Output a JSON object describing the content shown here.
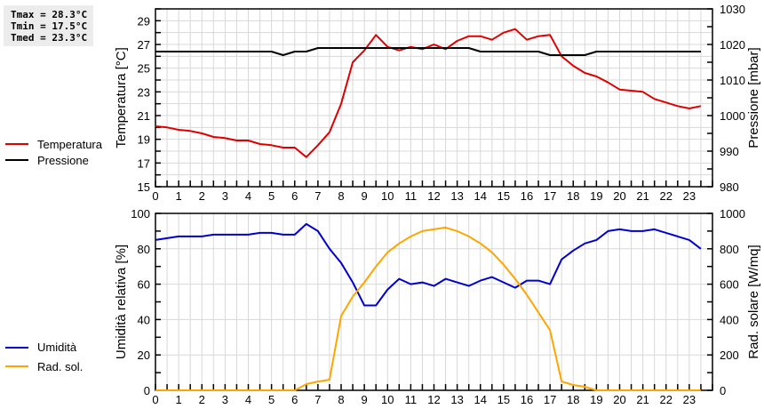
{
  "stats": {
    "tmax": "Tmax = 28.3°C",
    "tmin": "Tmin = 17.5°C",
    "tmed": "Tmed = 23.3°C"
  },
  "legend_top": [
    {
      "label": "Temperatura",
      "color": "#e00000"
    },
    {
      "label": "Pressione",
      "color": "#000000"
    }
  ],
  "legend_bottom": [
    {
      "label": "Umidità",
      "color": "#0000d0"
    },
    {
      "label": "Rad. sol.",
      "color": "#ffa500"
    }
  ],
  "chart_data": [
    {
      "type": "line",
      "title": "",
      "xlabel": "",
      "x_ticks": [
        0,
        1,
        2,
        3,
        4,
        5,
        6,
        7,
        8,
        9,
        10,
        11,
        12,
        13,
        14,
        15,
        16,
        17,
        18,
        19,
        20,
        21,
        22,
        23
      ],
      "x": [
        0,
        0.5,
        1,
        1.5,
        2,
        2.5,
        3,
        3.5,
        4,
        4.5,
        5,
        5.5,
        6,
        6.5,
        7,
        7.5,
        8,
        8.5,
        9,
        9.5,
        10,
        10.5,
        11,
        11.5,
        12,
        12.5,
        13,
        13.5,
        14,
        14.5,
        15,
        15.5,
        16,
        16.5,
        17,
        17.5,
        18,
        18.5,
        19,
        19.5,
        20,
        20.5,
        21,
        21.5,
        22,
        22.5,
        23,
        23.5
      ],
      "xlim": [
        0,
        24
      ],
      "grid": true,
      "ylabel": "Temperatura [°C]",
      "ylim": [
        15,
        30
      ],
      "y_ticks": [
        15,
        17,
        19,
        21,
        23,
        25,
        27,
        29
      ],
      "y2label": "Pressione [mbar]",
      "y2lim": [
        980,
        1030
      ],
      "y2_ticks": [
        980,
        990,
        1000,
        1010,
        1020,
        1030
      ],
      "legend_position": "left",
      "series": [
        {
          "name": "Temperatura",
          "axis": "y",
          "color": "#e00000",
          "values": [
            20.1,
            20.0,
            19.8,
            19.7,
            19.5,
            19.2,
            19.1,
            18.9,
            18.9,
            18.6,
            18.5,
            18.3,
            18.3,
            17.5,
            18.5,
            19.6,
            22.0,
            25.5,
            26.5,
            27.8,
            26.8,
            26.5,
            26.8,
            26.6,
            27.0,
            26.6,
            27.3,
            27.7,
            27.7,
            27.4,
            28.0,
            28.3,
            27.4,
            27.7,
            27.8,
            26.0,
            25.2,
            24.6,
            24.3,
            23.8,
            23.2,
            23.1,
            23.0,
            22.4,
            22.1,
            21.8,
            21.6,
            21.8
          ]
        },
        {
          "name": "Pressione",
          "axis": "y2",
          "color": "#000000",
          "values": [
            1018,
            1018,
            1018,
            1018,
            1018,
            1018,
            1018,
            1018,
            1018,
            1018,
            1018,
            1017,
            1018,
            1018,
            1019,
            1019,
            1019,
            1019,
            1019,
            1019,
            1019,
            1019,
            1019,
            1019,
            1019,
            1019,
            1019,
            1019,
            1018,
            1018,
            1018,
            1018,
            1018,
            1018,
            1017,
            1017,
            1017,
            1017,
            1018,
            1018,
            1018,
            1018,
            1018,
            1018,
            1018,
            1018,
            1018,
            1018
          ]
        }
      ]
    },
    {
      "type": "line",
      "title": "",
      "xlabel": "",
      "x_ticks": [
        0,
        1,
        2,
        3,
        4,
        5,
        6,
        7,
        8,
        9,
        10,
        11,
        12,
        13,
        14,
        15,
        16,
        17,
        18,
        19,
        20,
        21,
        22,
        23
      ],
      "x": [
        0,
        0.5,
        1,
        1.5,
        2,
        2.5,
        3,
        3.5,
        4,
        4.5,
        5,
        5.5,
        6,
        6.5,
        7,
        7.5,
        8,
        8.5,
        9,
        9.5,
        10,
        10.5,
        11,
        11.5,
        12,
        12.5,
        13,
        13.5,
        14,
        14.5,
        15,
        15.5,
        16,
        16.5,
        17,
        17.5,
        18,
        18.5,
        19,
        19.5,
        20,
        20.5,
        21,
        21.5,
        22,
        22.5,
        23,
        23.5
      ],
      "xlim": [
        0,
        24
      ],
      "grid": true,
      "ylabel": "Umidità relativa [%]",
      "ylim": [
        0,
        100
      ],
      "y_ticks": [
        0,
        20,
        40,
        60,
        80,
        100
      ],
      "y2label": "Rad. solare [W/mq]",
      "y2lim": [
        0,
        1000
      ],
      "y2_ticks": [
        0,
        200,
        400,
        600,
        800,
        1000
      ],
      "legend_position": "left",
      "series": [
        {
          "name": "Umidità",
          "axis": "y",
          "color": "#0000d0",
          "values": [
            85,
            86,
            87,
            87,
            87,
            88,
            88,
            88,
            88,
            89,
            89,
            88,
            88,
            94,
            90,
            80,
            72,
            61,
            48,
            48,
            57,
            63,
            60,
            61,
            59,
            63,
            61,
            59,
            62,
            64,
            61,
            58,
            62,
            62,
            60,
            74,
            79,
            83,
            85,
            90,
            91,
            90,
            90,
            91,
            89,
            87,
            85,
            80
          ]
        },
        {
          "name": "Rad. sol.",
          "axis": "y2",
          "color": "#ffa500",
          "values": [
            0,
            0,
            0,
            0,
            0,
            0,
            0,
            0,
            0,
            0,
            0,
            0,
            0,
            35,
            50,
            60,
            420,
            530,
            610,
            700,
            780,
            830,
            870,
            900,
            910,
            920,
            900,
            870,
            830,
            780,
            710,
            630,
            540,
            440,
            340,
            50,
            30,
            20,
            0,
            0,
            0,
            0,
            0,
            0,
            0,
            0,
            0,
            0
          ]
        }
      ]
    }
  ]
}
